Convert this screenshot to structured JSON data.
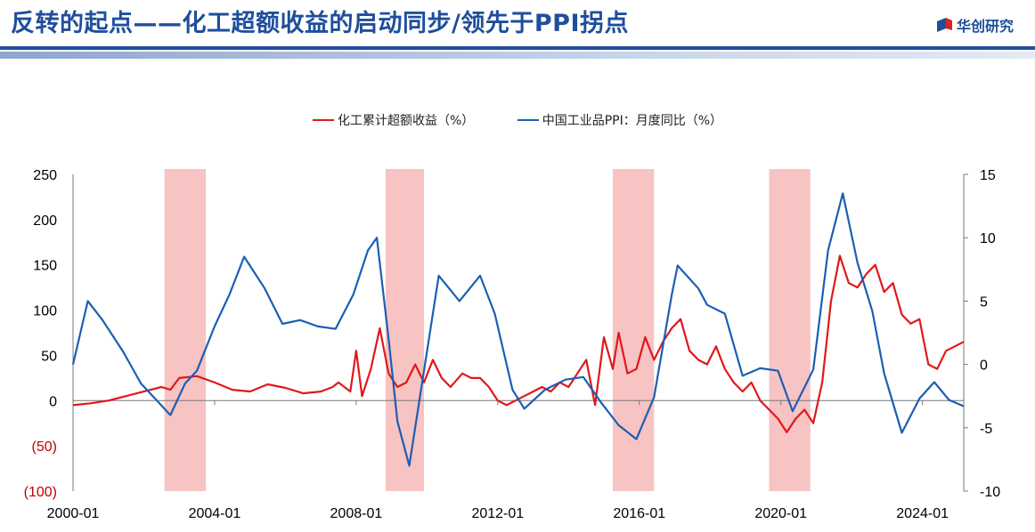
{
  "header": {
    "title": "反转的起点——化工超额收益的启动同步/领先于PPI拐点",
    "brand": "华创研究",
    "accent_color": "#1f4e9b"
  },
  "chart_data": {
    "type": "line",
    "legend_position": "top",
    "grid": false,
    "shaded_periods": [
      {
        "start": "2002-08",
        "end": "2003-10"
      },
      {
        "start": "2008-11",
        "end": "2009-12"
      },
      {
        "start": "2015-04",
        "end": "2016-06"
      },
      {
        "start": "2019-09",
        "end": "2020-11"
      }
    ],
    "x_ticks": [
      "2000-01",
      "2004-01",
      "2008-01",
      "2012-01",
      "2016-01",
      "2020-01",
      "2024-01"
    ],
    "x_range": [
      "2000-01",
      "2025-03"
    ],
    "y_left": {
      "range": [
        -100,
        250
      ],
      "ticks": [
        250,
        200,
        150,
        100,
        50,
        0,
        -50,
        -100
      ],
      "tick_labels": [
        "250",
        "200",
        "150",
        "100",
        "50",
        "0",
        "(50)",
        "(100)"
      ]
    },
    "y_right": {
      "range": [
        -10,
        15
      ],
      "ticks": [
        15,
        10,
        5,
        0,
        -5,
        -10
      ],
      "tick_labels": [
        "15",
        "10",
        "5",
        "0",
        "-5",
        "-10"
      ]
    },
    "series": [
      {
        "name": "化工累计超额收益（%）",
        "axis": "left",
        "color": "#e0181b",
        "x": [
          "2000-01",
          "2000-07",
          "2001-01",
          "2001-07",
          "2002-01",
          "2002-07",
          "2002-10",
          "2003-01",
          "2003-07",
          "2004-01",
          "2004-07",
          "2005-01",
          "2005-07",
          "2006-01",
          "2006-07",
          "2007-01",
          "2007-05",
          "2007-07",
          "2007-11",
          "2008-01",
          "2008-03",
          "2008-06",
          "2008-09",
          "2008-12",
          "2009-03",
          "2009-06",
          "2009-09",
          "2009-12",
          "2010-03",
          "2010-06",
          "2010-09",
          "2011-01",
          "2011-04",
          "2011-07",
          "2011-10",
          "2012-01",
          "2012-04",
          "2012-07",
          "2012-10",
          "2013-01",
          "2013-04",
          "2013-07",
          "2013-10",
          "2014-01",
          "2014-04",
          "2014-07",
          "2014-10",
          "2015-01",
          "2015-04",
          "2015-06",
          "2015-09",
          "2015-12",
          "2016-03",
          "2016-06",
          "2016-09",
          "2016-12",
          "2017-03",
          "2017-06",
          "2017-09",
          "2017-12",
          "2018-03",
          "2018-06",
          "2018-09",
          "2018-12",
          "2019-03",
          "2019-06",
          "2019-09",
          "2019-12",
          "2020-03",
          "2020-06",
          "2020-09",
          "2020-12",
          "2021-03",
          "2021-06",
          "2021-09",
          "2021-12",
          "2022-03",
          "2022-06",
          "2022-09",
          "2022-12",
          "2023-03",
          "2023-06",
          "2023-09",
          "2023-12",
          "2024-03",
          "2024-06",
          "2024-09",
          "2024-12",
          "2025-03"
        ],
        "values": [
          -5,
          -3,
          0,
          5,
          10,
          15,
          12,
          25,
          27,
          20,
          12,
          10,
          18,
          14,
          8,
          10,
          15,
          20,
          10,
          55,
          5,
          35,
          80,
          30,
          15,
          20,
          40,
          20,
          45,
          25,
          15,
          30,
          25,
          25,
          15,
          0,
          -5,
          0,
          5,
          10,
          15,
          10,
          20,
          15,
          30,
          45,
          -5,
          70,
          35,
          75,
          30,
          35,
          70,
          45,
          65,
          80,
          90,
          55,
          45,
          40,
          60,
          35,
          20,
          10,
          20,
          0,
          -10,
          -20,
          -35,
          -20,
          -10,
          -25,
          20,
          110,
          160,
          130,
          125,
          140,
          150,
          120,
          130,
          95,
          85,
          90,
          40,
          35,
          55,
          60,
          65
        ]
      },
      {
        "name": "中国工业品PPI：月度同比（%）",
        "axis": "right",
        "color": "#1a5fb4",
        "x": [
          "2000-01",
          "2000-06",
          "2000-11",
          "2001-06",
          "2001-12",
          "2002-06",
          "2002-10",
          "2003-03",
          "2003-07",
          "2004-01",
          "2004-06",
          "2004-11",
          "2005-06",
          "2005-12",
          "2006-06",
          "2006-12",
          "2007-06",
          "2007-12",
          "2008-05",
          "2008-08",
          "2008-12",
          "2009-03",
          "2009-07",
          "2009-11",
          "2010-05",
          "2010-12",
          "2011-07",
          "2011-12",
          "2012-06",
          "2012-10",
          "2013-05",
          "2013-12",
          "2014-06",
          "2014-12",
          "2015-06",
          "2015-12",
          "2016-06",
          "2016-12",
          "2017-02",
          "2017-09",
          "2017-12",
          "2018-06",
          "2018-12",
          "2019-06",
          "2019-12",
          "2020-05",
          "2020-12",
          "2021-05",
          "2021-10",
          "2022-03",
          "2022-08",
          "2022-12",
          "2023-06",
          "2023-12",
          "2024-05",
          "2024-10",
          "2025-03"
        ],
        "values": [
          0,
          5,
          3.5,
          1,
          -1.5,
          -3,
          -4,
          -1.5,
          -0.5,
          3,
          5.5,
          8.5,
          6,
          3.2,
          3.5,
          3,
          2.8,
          5.5,
          9,
          10,
          2,
          -4.5,
          -8,
          -2,
          7,
          5,
          7,
          4,
          -2,
          -3.5,
          -2,
          -1.2,
          -1,
          -3,
          -4.8,
          -5.9,
          -2.6,
          5.5,
          7.8,
          6,
          4.7,
          4,
          -0.9,
          -0.3,
          -0.5,
          -3.7,
          -0.4,
          9,
          13.5,
          8,
          4.2,
          -0.7,
          -5.4,
          -2.7,
          -1.4,
          -2.8,
          -3.3
        ]
      }
    ]
  }
}
